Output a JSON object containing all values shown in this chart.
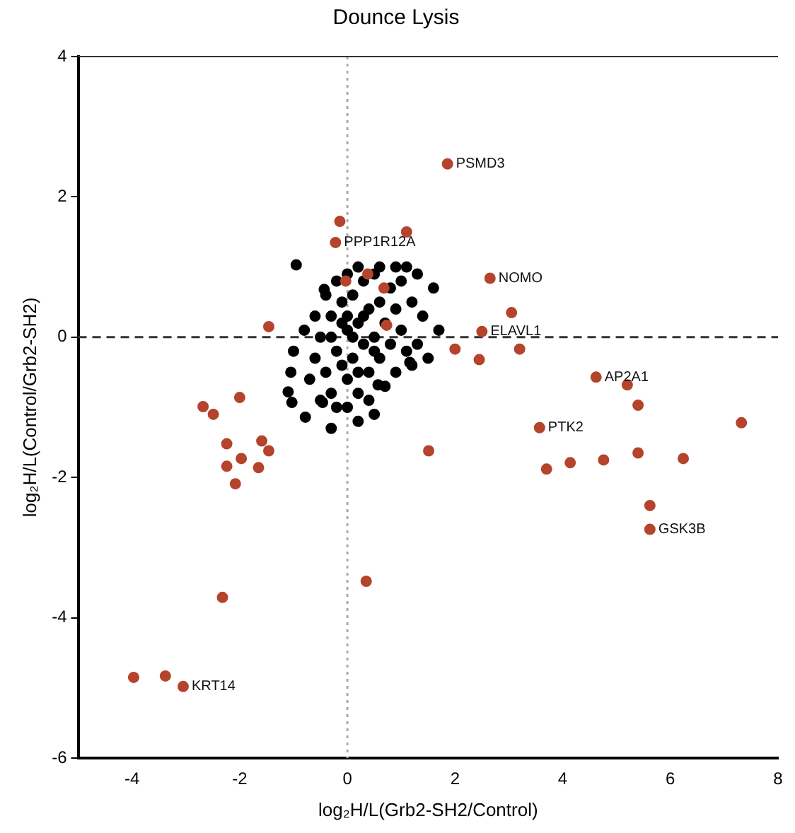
{
  "chart_data": {
    "type": "scatter",
    "title": "Dounce Lysis",
    "xlabel": "log₂H/L(Grb2-SH2/Control)",
    "ylabel": "log₂H/L(Control/Grb2-SH2)",
    "xlim": [
      -5,
      8
    ],
    "xticks": [
      -4,
      -2,
      0,
      2,
      4,
      6,
      8
    ],
    "ylim": [
      -6,
      4
    ],
    "yticks": [
      -6,
      -4,
      -2,
      0,
      2,
      4
    ],
    "grid": false,
    "legend": false,
    "marker": "circle",
    "ref_lines": [
      {
        "axis": "x",
        "value": 0,
        "color": "#aaaaaa",
        "line_style": "dotted"
      },
      {
        "axis": "y",
        "value": 0,
        "color": "#333333",
        "line_style": "dashed"
      }
    ],
    "series": [
      {
        "color": "#000000",
        "x": [
          -0.6,
          -0.5,
          -0.4,
          -0.3,
          -0.2,
          -0.1,
          0,
          0,
          0.1,
          0.1,
          0.2,
          0.2,
          0.3,
          0.3,
          0.4,
          0.4,
          0.5,
          0.5,
          0.6,
          0.6,
          0.7,
          0.8,
          0.8,
          0.9,
          1.0,
          1.0,
          1.1,
          1.2,
          1.3,
          -0.7,
          -0.5,
          -0.3,
          -0.2,
          0,
          0.2,
          -0.8,
          -0.6,
          -0.4,
          -0.2,
          0,
          0.2,
          0.6,
          0.9,
          1.1,
          1.4,
          1.3,
          1.2,
          0.9,
          0.7,
          0.4,
          -0.1,
          0.1,
          0.3,
          -0.3,
          0,
          0.5,
          -0.1,
          0.2,
          -0.95,
          -0.43,
          -1.05,
          -1.1,
          -1.03,
          -0.78,
          -0.46,
          -1.0,
          1.16,
          0.57,
          -0.3,
          0.5,
          1.7,
          1.5,
          1.6
        ],
        "values": [
          -0.3,
          0,
          -0.5,
          0.3,
          -0.2,
          0.5,
          -0.6,
          0.1,
          -0.3,
          0.6,
          0.2,
          -0.8,
          -0.1,
          0.8,
          0.4,
          -0.5,
          0,
          0.9,
          -0.3,
          0.5,
          0.2,
          0.7,
          -0.1,
          0.4,
          0.8,
          0.1,
          -0.2,
          0.5,
          0.9,
          -0.6,
          -0.9,
          -0.8,
          -1.0,
          -1.0,
          -1.2,
          0.1,
          0.3,
          0.6,
          0.8,
          0.9,
          1.0,
          1.0,
          1.0,
          1.0,
          0.3,
          -0.1,
          -0.4,
          -0.5,
          -0.7,
          -0.9,
          -0.4,
          0,
          0.3,
          0,
          0.3,
          -0.2,
          0.2,
          -0.5,
          1.03,
          0.68,
          -0.5,
          -0.78,
          -0.93,
          -1.14,
          -0.93,
          -0.2,
          -0.36,
          -0.68,
          -1.3,
          -1.1,
          0.1,
          -0.3,
          0.7
        ]
      },
      {
        "color": "#b5442c",
        "x": [
          1.86,
          -0.14,
          -0.22,
          1.1,
          2.65,
          3.05,
          2.5,
          2.0,
          3.2,
          2.45,
          -1.46,
          4.62,
          5.2,
          5.4,
          3.57,
          1.51,
          3.7,
          4.14,
          4.76,
          5.4,
          6.24,
          7.32,
          5.62,
          5.62,
          -2.68,
          -2.49,
          -2.0,
          -2.24,
          -1.59,
          -1.46,
          -2.24,
          -1.97,
          -1.65,
          -2.08,
          -2.32,
          -3.97,
          -3.38,
          -3.05,
          0.35,
          -0.03,
          0.38,
          0.73,
          0.68
        ],
        "values": [
          2.47,
          1.65,
          1.35,
          1.5,
          0.84,
          0.35,
          0.08,
          -0.17,
          -0.17,
          -0.32,
          0.15,
          -0.57,
          -0.68,
          -0.97,
          -1.29,
          -1.62,
          -1.88,
          -1.79,
          -1.75,
          -1.65,
          -1.73,
          -1.22,
          -2.4,
          -2.74,
          -0.99,
          -1.1,
          -0.86,
          -1.52,
          -1.48,
          -1.62,
          -1.84,
          -1.73,
          -1.86,
          -2.09,
          -3.71,
          -4.85,
          -4.83,
          -4.98,
          -3.48,
          0.8,
          0.9,
          0.17,
          0.7
        ]
      }
    ],
    "annotations": [
      {
        "text": "PSMD3",
        "x": 1.86,
        "y": 2.47
      },
      {
        "text": "PPP1R12A",
        "x": -0.22,
        "y": 1.35
      },
      {
        "text": "ELAVL1",
        "x": 2.5,
        "y": 0.08
      },
      {
        "text": "AP2A1",
        "x": 4.62,
        "y": -0.57
      },
      {
        "text": "PTK2",
        "x": 3.57,
        "y": -1.29
      },
      {
        "text": "GSK3B",
        "x": 5.62,
        "y": -2.74
      },
      {
        "text": "KRT14",
        "x": -3.05,
        "y": -4.98
      },
      {
        "text": "NOMO",
        "x": 2.65,
        "y": 0.84
      }
    ]
  }
}
